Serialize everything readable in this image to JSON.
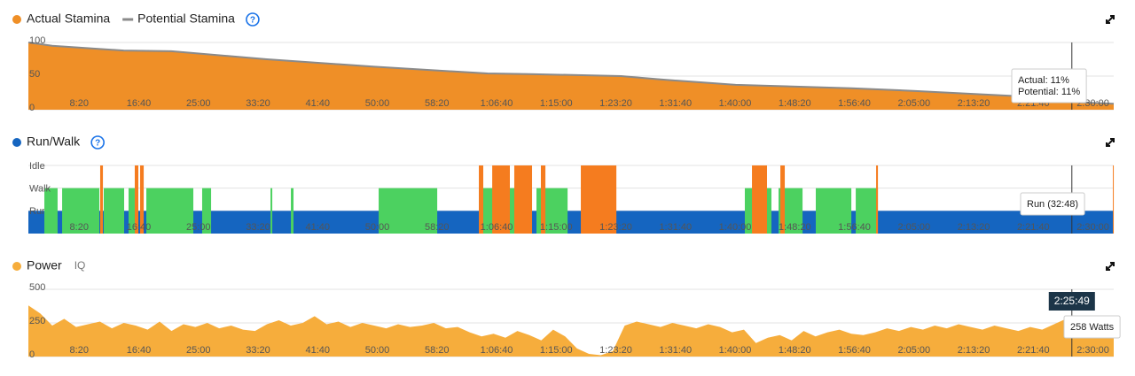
{
  "chart_data": [
    {
      "type": "area",
      "help": "?",
      "x": [
        0,
        200,
        800,
        1200,
        2000,
        2900,
        3850,
        4200,
        4970,
        5300,
        5930,
        6900,
        7420,
        8310,
        8800,
        9100
      ],
      "series": [
        {
          "name": "Actual Stamina",
          "color": "#ef8f27",
          "style": "area",
          "values": [
            100,
            95,
            88,
            87,
            75,
            64,
            54,
            53,
            50,
            45,
            37,
            32,
            28,
            20,
            11,
            9
          ]
        },
        {
          "name": "Potential Stamina",
          "color": "#8a8a8a",
          "style": "line",
          "values": [
            100,
            95,
            88,
            87,
            75,
            64,
            54,
            53,
            50,
            45,
            37,
            32,
            28,
            20,
            11,
            9
          ]
        }
      ],
      "xlim": [
        0,
        9100
      ],
      "xticks": [
        {
          "value": 500,
          "label": "8:20"
        },
        {
          "value": 1000,
          "label": "16:40"
        },
        {
          "value": 1500,
          "label": "25:00"
        },
        {
          "value": 2000,
          "label": "33:20"
        },
        {
          "value": 2500,
          "label": "41:40"
        },
        {
          "value": 3000,
          "label": "50:00"
        },
        {
          "value": 3500,
          "label": "58:20"
        },
        {
          "value": 4000,
          "label": "1:06:40"
        },
        {
          "value": 4500,
          "label": "1:15:00"
        },
        {
          "value": 5000,
          "label": "1:23:20"
        },
        {
          "value": 5500,
          "label": "1:31:40"
        },
        {
          "value": 6000,
          "label": "1:40:00"
        },
        {
          "value": 6500,
          "label": "1:48:20"
        },
        {
          "value": 7000,
          "label": "1:56:40"
        },
        {
          "value": 7500,
          "label": "2:05:00"
        },
        {
          "value": 8000,
          "label": "2:13:20"
        },
        {
          "value": 8500,
          "label": "2:21:40"
        },
        {
          "value": 9000,
          "label": "2:30:00"
        }
      ],
      "ylim": [
        0,
        100
      ],
      "yticks": [
        0,
        50,
        100
      ],
      "grid": true,
      "cursor": 8749,
      "tooltip": [
        "Actual: 11%",
        "Potential: 11%"
      ]
    },
    {
      "type": "timeline",
      "title": "Run/Walk",
      "help": "?",
      "series": [
        {
          "name": "Run",
          "color": "#1565c0",
          "intervals": [
            [
              0,
              9100
            ]
          ]
        },
        {
          "name": "Walk",
          "color": "#4cd160",
          "intervals": [
            [
              134,
              245
            ],
            [
              283,
              595
            ],
            [
              632,
              803
            ],
            [
              840,
              892
            ],
            [
              989,
              1383
            ],
            [
              1457,
              1532
            ],
            [
              2030,
              2045
            ],
            [
              2201,
              2223
            ],
            [
              2937,
              3428
            ],
            [
              3777,
              4223
            ],
            [
              4260,
              4521
            ],
            [
              4669,
              4781
            ],
            [
              6007,
              6082
            ],
            [
              6119,
              6230
            ],
            [
              6290,
              6491
            ],
            [
              6602,
              6900
            ],
            [
              6937,
              7123
            ]
          ]
        },
        {
          "name": "Idle",
          "color": "#f57c1f",
          "intervals": [
            [
              602,
              625
            ],
            [
              892,
              922
            ],
            [
              937,
              967
            ],
            [
              3777,
              3814
            ],
            [
              3889,
              4037
            ],
            [
              4074,
              4223
            ],
            [
              4297,
              4335
            ],
            [
              4632,
              4930
            ],
            [
              6067,
              6193
            ],
            [
              6305,
              6342
            ],
            [
              7108,
              7123
            ],
            [
              9093,
              9100
            ]
          ]
        }
      ],
      "xlim": [
        0,
        9100
      ],
      "xticks": [
        {
          "value": 500,
          "label": "8:20"
        },
        {
          "value": 1000,
          "label": "16:40"
        },
        {
          "value": 1500,
          "label": "25:00"
        },
        {
          "value": 2000,
          "label": "33:20"
        },
        {
          "value": 2500,
          "label": "41:40"
        },
        {
          "value": 3000,
          "label": "50:00"
        },
        {
          "value": 3500,
          "label": "58:20"
        },
        {
          "value": 4000,
          "label": "1:06:40"
        },
        {
          "value": 4500,
          "label": "1:15:00"
        },
        {
          "value": 5000,
          "label": "1:23:20"
        },
        {
          "value": 5500,
          "label": "1:31:40"
        },
        {
          "value": 6000,
          "label": "1:40:00"
        },
        {
          "value": 6500,
          "label": "1:48:20"
        },
        {
          "value": 7000,
          "label": "1:56:40"
        },
        {
          "value": 7500,
          "label": "2:05:00"
        },
        {
          "value": 8000,
          "label": "2:13:20"
        },
        {
          "value": 8500,
          "label": "2:21:40"
        },
        {
          "value": 9000,
          "label": "2:30:00"
        }
      ],
      "grid": true,
      "cursor": 8749,
      "tooltip": [
        "Run (32:48)"
      ]
    },
    {
      "type": "area",
      "title": "Power",
      "subtitle": "IQ",
      "color": "#f6ad3c",
      "x": [
        0,
        100,
        200,
        300,
        400,
        500,
        600,
        700,
        800,
        900,
        1000,
        1100,
        1200,
        1300,
        1400,
        1500,
        1600,
        1700,
        1800,
        1900,
        2000,
        2100,
        2200,
        2300,
        2400,
        2500,
        2600,
        2700,
        2800,
        2900,
        3000,
        3100,
        3200,
        3300,
        3400,
        3500,
        3600,
        3700,
        3800,
        3900,
        4000,
        4100,
        4200,
        4300,
        4400,
        4500,
        4600,
        4700,
        4800,
        4900,
        5000,
        5100,
        5200,
        5300,
        5400,
        5500,
        5600,
        5700,
        5800,
        5900,
        6000,
        6100,
        6200,
        6300,
        6400,
        6500,
        6600,
        6700,
        6800,
        6900,
        7000,
        7100,
        7200,
        7300,
        7400,
        7500,
        7600,
        7700,
        7800,
        7900,
        8000,
        8100,
        8200,
        8300,
        8400,
        8500,
        8600,
        8700,
        8800,
        8900,
        9000,
        9100
      ],
      "values": [
        380,
        320,
        230,
        280,
        220,
        240,
        260,
        210,
        250,
        230,
        200,
        260,
        190,
        240,
        220,
        250,
        210,
        230,
        200,
        190,
        240,
        270,
        230,
        250,
        300,
        240,
        260,
        220,
        250,
        230,
        210,
        240,
        220,
        230,
        250,
        210,
        220,
        180,
        150,
        170,
        140,
        190,
        160,
        120,
        200,
        150,
        60,
        20,
        10,
        40,
        230,
        260,
        240,
        220,
        250,
        230,
        210,
        240,
        220,
        180,
        200,
        100,
        140,
        160,
        120,
        190,
        150,
        180,
        200,
        170,
        160,
        180,
        210,
        190,
        220,
        200,
        230,
        210,
        240,
        220,
        200,
        230,
        210,
        190,
        220,
        200,
        240,
        280,
        260,
        258,
        270,
        250
      ],
      "xlim": [
        0,
        9100
      ],
      "xticks": [
        {
          "value": 500,
          "label": "8:20"
        },
        {
          "value": 1000,
          "label": "16:40"
        },
        {
          "value": 1500,
          "label": "25:00"
        },
        {
          "value": 2000,
          "label": "33:20"
        },
        {
          "value": 2500,
          "label": "41:40"
        },
        {
          "value": 3000,
          "label": "50:00"
        },
        {
          "value": 3500,
          "label": "58:20"
        },
        {
          "value": 4000,
          "label": "1:06:40"
        },
        {
          "value": 4500,
          "label": "1:15:00"
        },
        {
          "value": 5000,
          "label": "1:23:20"
        },
        {
          "value": 5500,
          "label": "1:31:40"
        },
        {
          "value": 6000,
          "label": "1:40:00"
        },
        {
          "value": 6500,
          "label": "1:48:20"
        },
        {
          "value": 7000,
          "label": "1:56:40"
        },
        {
          "value": 7500,
          "label": "2:05:00"
        },
        {
          "value": 8000,
          "label": "2:13:20"
        },
        {
          "value": 8500,
          "label": "2:21:40"
        },
        {
          "value": 9000,
          "label": "2:30:00"
        }
      ],
      "ylim": [
        0,
        500
      ],
      "yticks": [
        0,
        250,
        500
      ],
      "grid": true,
      "cursor": {
        "value": 8749,
        "label": "2:25:49"
      },
      "tooltip": [
        "258 Watts"
      ]
    }
  ]
}
